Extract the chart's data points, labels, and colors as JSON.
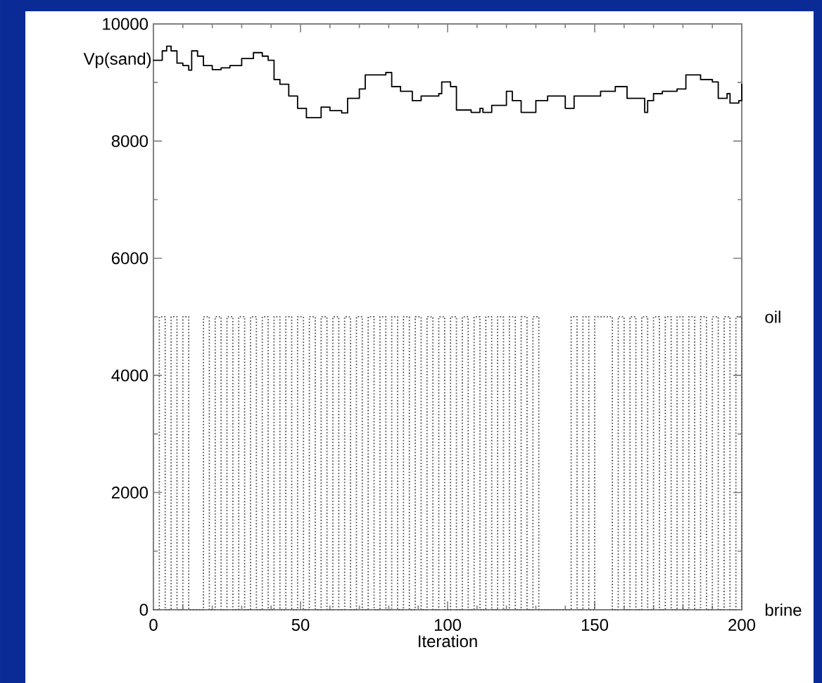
{
  "chart_data": {
    "type": "step",
    "xlabel": "Iteration",
    "xlim": [
      0,
      200
    ],
    "ylim": [
      0,
      10000
    ],
    "xticks": [
      0,
      50,
      100,
      150,
      200
    ],
    "yticks": [
      0,
      2000,
      4000,
      6000,
      8000,
      10000
    ],
    "grid": false,
    "legend": false,
    "marker": "none",
    "annotations": [
      {
        "text": "oil",
        "x": 200,
        "y": 5000
      },
      {
        "text": "brine",
        "x": 200,
        "y": 0
      }
    ],
    "series": [
      {
        "name": "Vp(sand)",
        "color": "#000000",
        "line_style": "solid",
        "x": [
          0,
          3,
          4.5,
          6,
          8,
          10,
          12,
          13,
          15,
          17,
          20,
          23,
          26,
          30,
          34,
          37,
          39,
          41,
          43,
          46,
          49,
          52,
          56,
          57,
          60,
          64,
          66,
          70,
          72,
          76,
          79,
          81,
          84,
          88,
          91,
          97,
          98,
          101,
          103,
          108,
          111,
          112,
          115,
          120,
          122,
          125,
          130,
          134,
          139,
          140,
          143,
          149,
          152,
          157,
          161,
          167,
          168,
          170,
          173,
          178,
          181,
          186,
          190,
          192,
          195,
          196,
          199,
          200
        ],
        "values": [
          9380,
          9540,
          9620,
          9540,
          9330,
          9290,
          9210,
          9540,
          9450,
          9290,
          9220,
          9250,
          9290,
          9410,
          9510,
          9450,
          9380,
          9050,
          8970,
          8770,
          8560,
          8400,
          8400,
          8580,
          8520,
          8480,
          8730,
          8890,
          9130,
          9130,
          9170,
          8930,
          8850,
          8690,
          8770,
          8810,
          9010,
          8930,
          8530,
          8490,
          8560,
          8490,
          8610,
          8850,
          8690,
          8490,
          8690,
          8770,
          8770,
          8560,
          8770,
          8770,
          8850,
          8930,
          8730,
          8490,
          8690,
          8810,
          8850,
          8890,
          9130,
          9050,
          9010,
          8730,
          8810,
          8650,
          8690,
          8970
        ]
      },
      {
        "color": "#555555",
        "line_style": "dotted",
        "x": [
          0,
          2,
          4,
          6,
          8,
          10,
          12,
          17,
          19,
          21,
          23,
          25,
          27,
          29,
          31,
          33,
          35,
          37,
          39,
          41,
          43,
          45,
          47,
          49,
          51,
          53,
          55,
          57,
          59,
          61,
          63,
          65,
          67,
          69,
          71,
          73,
          75,
          77,
          79,
          81,
          83,
          85,
          87,
          89,
          91,
          93,
          95,
          97,
          99,
          101,
          103,
          105,
          107,
          109,
          111,
          113,
          115,
          117,
          119,
          121,
          123,
          125,
          127,
          129,
          131,
          142,
          144,
          146,
          148,
          150,
          156,
          158,
          160,
          162,
          164,
          166,
          168,
          170,
          172,
          174,
          176,
          178,
          180,
          182,
          184,
          186,
          188,
          190,
          192,
          194,
          196,
          198,
          200
        ],
        "values": [
          0,
          5000,
          0,
          5000,
          0,
          5000,
          0,
          5000,
          0,
          5000,
          0,
          5000,
          0,
          5000,
          0,
          5000,
          0,
          5000,
          0,
          5000,
          0,
          5000,
          0,
          5000,
          0,
          5000,
          0,
          5000,
          0,
          5000,
          0,
          5000,
          0,
          5000,
          0,
          5000,
          0,
          5000,
          0,
          5000,
          0,
          5000,
          0,
          5000,
          0,
          5000,
          0,
          5000,
          0,
          5000,
          0,
          5000,
          0,
          5000,
          0,
          5000,
          0,
          5000,
          0,
          5000,
          0,
          5000,
          0,
          5000,
          0,
          5000,
          0,
          5000,
          0,
          5000,
          0,
          5000,
          0,
          5000,
          0,
          5000,
          0,
          5000,
          0,
          5000,
          0,
          5000,
          0,
          5000,
          0,
          5000,
          0,
          5000,
          0,
          5000,
          0,
          5000,
          0
        ]
      }
    ]
  }
}
